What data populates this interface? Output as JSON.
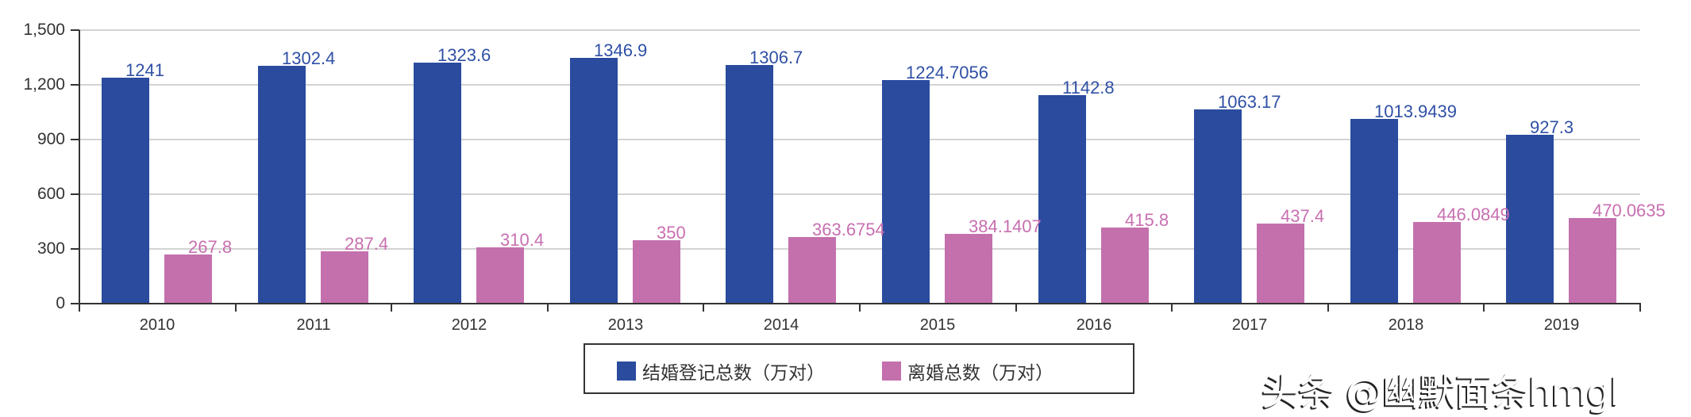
{
  "chart_data": {
    "type": "bar",
    "title": "",
    "xlabel": "",
    "ylabel": "",
    "categories": [
      "2010",
      "2011",
      "2012",
      "2013",
      "2014",
      "2015",
      "2016",
      "2017",
      "2018",
      "2019"
    ],
    "series": [
      {
        "name": "结婚登记总数（万对）",
        "color": "#2a4b9e",
        "label_color": "#2f50a5",
        "values": [
          1241,
          1302.4,
          1323.6,
          1346.9,
          1306.7,
          1224.7056,
          1142.8,
          1063.17,
          1013.9439,
          927.3
        ],
        "labels": [
          "1241",
          "1302.4",
          "1323.6",
          "1346.9",
          "1306.7",
          "1224.7056",
          "1142.8",
          "1063.17",
          "1013.9439",
          "927.3"
        ]
      },
      {
        "name": "离婚总数（万对）",
        "color": "#c470ad",
        "label_color": "#c86fb0",
        "values": [
          267.8,
          287.4,
          310.4,
          350,
          363.6754,
          384.1407,
          415.8,
          437.4,
          446.0849,
          470.0635
        ],
        "labels": [
          "267.8",
          "287.4",
          "310.4",
          "350",
          "363.6754",
          "384.1407",
          "415.8",
          "437.4",
          "446.0849",
          "470.0635"
        ]
      }
    ],
    "ylim": [
      0,
      1500
    ],
    "yticks": [
      0,
      300,
      600,
      900,
      1200,
      1500
    ],
    "ytick_labels": [
      "0",
      "300",
      "600",
      "900",
      "1,200",
      "1,500"
    ],
    "grid": true,
    "legend_position": "bottom"
  },
  "legend": {
    "items": [
      {
        "label": "结婚登记总数（万对）",
        "color": "#2a4b9e"
      },
      {
        "label": "离婚总数（万对）",
        "color": "#c470ad"
      }
    ]
  },
  "watermark": {
    "text": "头条 @幽默面条hmgl"
  }
}
